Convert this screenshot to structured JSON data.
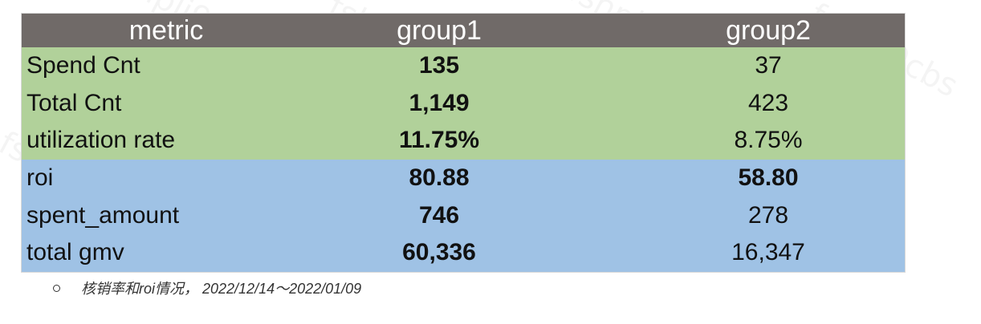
{
  "table": {
    "headers": [
      "metric",
      "group1",
      "group2"
    ],
    "rows": [
      {
        "metric": "Spend Cnt",
        "group1": "135",
        "group2": "37",
        "group1_bold": true,
        "group2_bold": false,
        "band": "green"
      },
      {
        "metric": "Total Cnt",
        "group1": "1,149",
        "group2": "423",
        "group1_bold": true,
        "group2_bold": false,
        "band": "green"
      },
      {
        "metric": "utilization rate",
        "group1": "11.75%",
        "group2": "8.75%",
        "group1_bold": true,
        "group2_bold": false,
        "band": "green"
      },
      {
        "metric": "roi",
        "group1": "80.88",
        "group2": "58.80",
        "group1_bold": true,
        "group2_bold": true,
        "band": "blue"
      },
      {
        "metric": "spent_amount",
        "group1": "746",
        "group2": "278",
        "group1_bold": true,
        "group2_bold": false,
        "band": "blue"
      },
      {
        "metric": "total gmv",
        "group1": "60,336",
        "group2": "16,347",
        "group1_bold": true,
        "group2_bold": false,
        "band": "blue"
      }
    ]
  },
  "caption": "核销率和roi情况， 2022/12/14～2022/01/09",
  "watermark": "fshplj9cbs",
  "colors": {
    "header_bg": "#706a68",
    "green_band": "#b1d19a",
    "blue_band": "#9fc2e5"
  }
}
